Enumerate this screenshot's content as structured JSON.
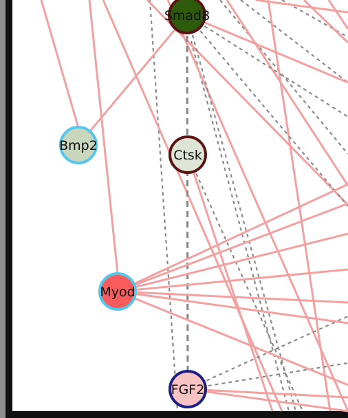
{
  "colors": {
    "frame": "#111111",
    "bevel": "#8e8e8e",
    "canvas": "#ffffff",
    "solid_edge": "#f3a0a0",
    "dashed_edge": "#8a8a8a"
  },
  "nodes": [
    {
      "id": "smad8",
      "label": "Smad8",
      "fill": "#2e5a0c",
      "stroke": "#5a1414"
    },
    {
      "id": "bmp2",
      "label": "Bmp2",
      "fill": "#c7d6bd",
      "stroke": "#55c6ec"
    },
    {
      "id": "ctsk",
      "label": "Ctsk",
      "fill": "#dfe5d6",
      "stroke": "#5a1414"
    },
    {
      "id": "myod",
      "label": "Myod",
      "fill": "#f65c5c",
      "stroke": "#55c6ec"
    },
    {
      "id": "fgf2",
      "label": "FGF2",
      "fill": "#f9c3c3",
      "stroke": "#1b1f84"
    }
  ],
  "edges": {
    "solid": [
      {
        "from": "smad8",
        "to": "bmp2"
      },
      {
        "from": "smad8",
        "to": "out"
      },
      {
        "from": "ctsk",
        "to": "out"
      },
      {
        "from": "myod",
        "to": "out"
      },
      {
        "from": "myod",
        "to": "out"
      },
      {
        "from": "myod",
        "to": "out"
      },
      {
        "from": "myod",
        "to": "out"
      },
      {
        "from": "myod",
        "to": "out"
      },
      {
        "from": "myod",
        "to": "out"
      },
      {
        "from": "myod",
        "to": "out"
      },
      {
        "from": "fgf2",
        "to": "out"
      },
      {
        "from": "fgf2",
        "to": "out"
      }
    ],
    "dashed": [
      {
        "from": "smad8",
        "to": "fgf2"
      },
      {
        "from": "smad8",
        "to": "out"
      },
      {
        "from": "smad8",
        "to": "out"
      },
      {
        "from": "smad8",
        "to": "out"
      },
      {
        "from": "ctsk",
        "to": "out"
      },
      {
        "from": "fgf2",
        "to": "out"
      },
      {
        "from": "fgf2",
        "to": "out"
      },
      {
        "from": "fgf2",
        "to": "out"
      }
    ]
  }
}
